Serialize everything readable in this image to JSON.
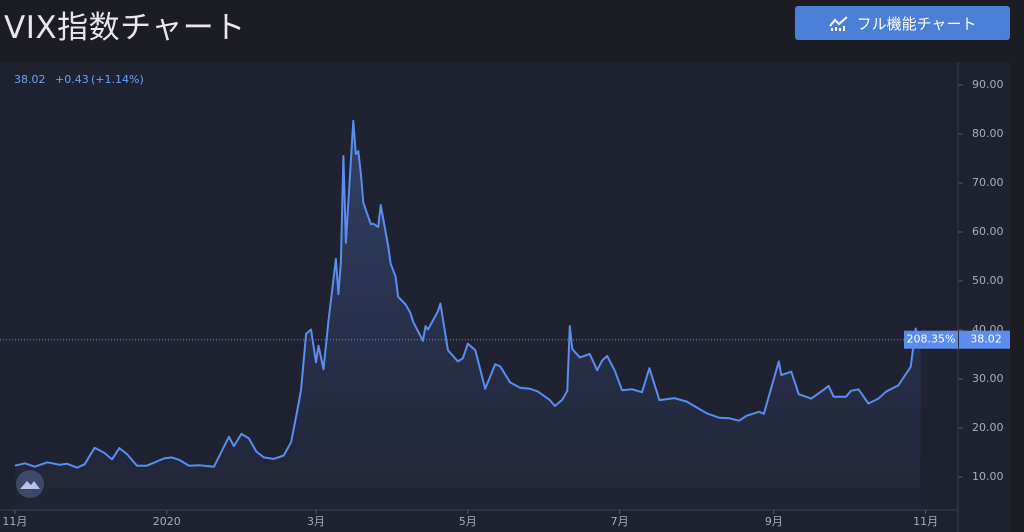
{
  "ui": {
    "title": "VIX指数チャート",
    "button": "フル機能チャート"
  },
  "chart_data": {
    "type": "line",
    "color": "#5b8def",
    "last_price": 38.02,
    "change": "+0.43",
    "change_pct": "(+1.14%)",
    "percent_label": "208.35%",
    "x": [
      0,
      4,
      8,
      13,
      18,
      21,
      25,
      28,
      32,
      36,
      39,
      42,
      45,
      49,
      53,
      58,
      60,
      63,
      66,
      70,
      74,
      80,
      86,
      88,
      91,
      94,
      97,
      100,
      104,
      108,
      111,
      114,
      115,
      117,
      119,
      121,
      122,
      124,
      126,
      129,
      130,
      131,
      132,
      133,
      136,
      137,
      138,
      139,
      140,
      143,
      144,
      146,
      147,
      150,
      151,
      153,
      154,
      157,
      159,
      160,
      164,
      165,
      166,
      170,
      171,
      174,
      178,
      180,
      182,
      185,
      189,
      193,
      195,
      199,
      203,
      207,
      210,
      215,
      217,
      220,
      222,
      223,
      224,
      227,
      231,
      234,
      236,
      238,
      241,
      244,
      248,
      252,
      255,
      259,
      265,
      270,
      273,
      278,
      283,
      287,
      291,
      294,
      299,
      301,
      307,
      308,
      312,
      315,
      320,
      325,
      327,
      329,
      334,
      336,
      339,
      343,
      347,
      350,
      355,
      360,
      362,
      363,
      364
    ],
    "values": [
      12.3,
      12.8,
      12.1,
      13.0,
      12.5,
      12.7,
      11.9,
      12.6,
      15.96,
      14.9,
      13.6,
      15.9,
      14.7,
      12.3,
      12.3,
      13.4,
      13.8,
      14.0,
      13.5,
      12.3,
      12.4,
      12.1,
      18.2,
      16.3,
      18.8,
      17.9,
      15.2,
      14.0,
      13.7,
      14.4,
      17.1,
      25.0,
      27.9,
      39.2,
      40.1,
      33.4,
      36.8,
      32.0,
      41.9,
      54.5,
      47.3,
      53.9,
      75.5,
      57.8,
      82.7,
      75.9,
      76.5,
      72.0,
      66.0,
      61.6,
      61.7,
      61.0,
      65.5,
      57.1,
      53.5,
      50.9,
      46.8,
      45.2,
      43.4,
      41.7,
      37.8,
      40.8,
      40.1,
      43.8,
      45.4,
      35.9,
      33.6,
      34.2,
      37.2,
      35.9,
      28.0,
      33.0,
      32.6,
      29.3,
      28.2,
      28.0,
      27.5,
      25.7,
      24.5,
      25.8,
      27.6,
      40.8,
      36.1,
      34.4,
      35.1,
      31.8,
      33.8,
      34.7,
      31.8,
      27.7,
      27.9,
      27.3,
      32.2,
      25.7,
      26.1,
      25.4,
      24.5,
      23.0,
      22.1,
      22.0,
      21.5,
      22.5,
      23.3,
      22.9,
      33.6,
      30.8,
      31.5,
      26.9,
      26.0,
      27.8,
      28.6,
      26.4,
      26.4,
      27.6,
      27.9,
      25.0,
      26.0,
      27.4,
      28.7,
      32.5,
      40.3,
      37.6,
      38.02
    ],
    "xlim": [
      -6,
      379
    ],
    "xticks": [
      {
        "value": 0,
        "label": "11月"
      },
      {
        "value": 61,
        "label": "2020"
      },
      {
        "value": 121,
        "label": "3月"
      },
      {
        "value": 182,
        "label": "5月"
      },
      {
        "value": 243,
        "label": "7月"
      },
      {
        "value": 305,
        "label": "9月"
      },
      {
        "value": 366,
        "label": "11月"
      }
    ],
    "ylim": [
      3.27,
      94.69
    ],
    "yticks": [
      {
        "value": 10,
        "label": "10.00"
      },
      {
        "value": 20,
        "label": "20.00"
      },
      {
        "value": 30,
        "label": "30.00"
      },
      {
        "value": 40,
        "label": "40.00"
      },
      {
        "value": 50,
        "label": "50.00"
      },
      {
        "value": 60,
        "label": "60.00"
      },
      {
        "value": 70,
        "label": "70.00"
      },
      {
        "value": 80,
        "label": "80.00"
      },
      {
        "value": 90,
        "label": "90.00"
      }
    ]
  }
}
